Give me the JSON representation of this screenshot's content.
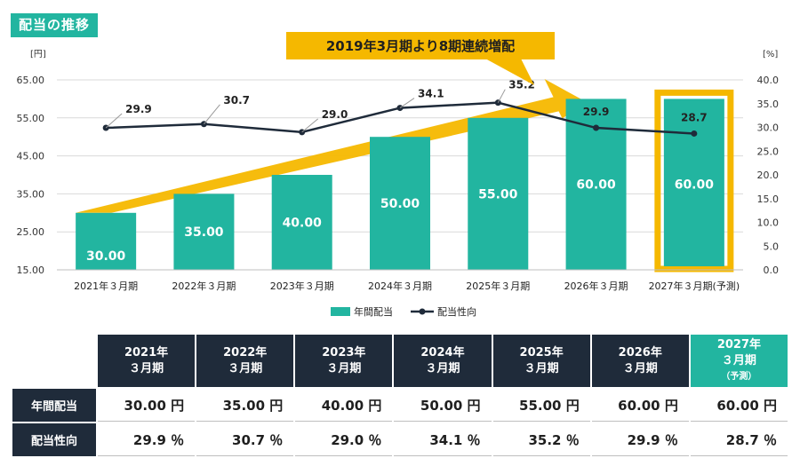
{
  "title": "配当の推移",
  "callout": "2019年3月期より8期連続増配",
  "legend": {
    "bars": "年間配当",
    "line": "配当性向"
  },
  "colors": {
    "bar": "#22b5a0",
    "line": "#1f2b3a",
    "arrow": "#f5b800",
    "title_bg": "#22b5a0",
    "header_bg": "#1f2b3a"
  },
  "chart_data": {
    "type": "bar",
    "categories": [
      "2021年３月期",
      "2022年３月期",
      "2023年３月期",
      "2024年３月期",
      "2025年３月期",
      "2026年３月期",
      "2027年３月期(予測)"
    ],
    "series": [
      {
        "name": "年間配当",
        "type": "bar",
        "axis": "left",
        "values": [
          30.0,
          35.0,
          40.0,
          50.0,
          55.0,
          60.0,
          60.0
        ],
        "labels": [
          "30.00",
          "35.00",
          "40.00",
          "50.00",
          "55.00",
          "60.00",
          "60.00"
        ]
      },
      {
        "name": "配当性向",
        "type": "line",
        "axis": "right",
        "values": [
          29.9,
          30.7,
          29.0,
          34.1,
          35.2,
          29.9,
          28.7
        ],
        "labels": [
          "29.9",
          "30.7",
          "29.0",
          "34.1",
          "35.2",
          "29.9",
          "28.7"
        ]
      }
    ],
    "y_left": {
      "unit": "[円]",
      "ylim": [
        15,
        65
      ],
      "ticks": [
        "15.00",
        "25.00",
        "35.00",
        "45.00",
        "55.00",
        "65.00"
      ]
    },
    "y_right": {
      "unit": "[%]",
      "ylim": [
        0,
        40
      ],
      "ticks": [
        "0.0",
        "5.0",
        "10.0",
        "15.0",
        "20.0",
        "25.0",
        "30.0",
        "35.0",
        "40.0"
      ]
    },
    "highlight_category": "2027年３月期(予測)",
    "legend_position": "bottom"
  },
  "table": {
    "headers": [
      {
        "line1": "2021年",
        "line2": "３月期",
        "note": ""
      },
      {
        "line1": "2022年",
        "line2": "３月期",
        "note": ""
      },
      {
        "line1": "2023年",
        "line2": "３月期",
        "note": ""
      },
      {
        "line1": "2024年",
        "line2": "３月期",
        "note": ""
      },
      {
        "line1": "2025年",
        "line2": "３月期",
        "note": ""
      },
      {
        "line1": "2026年",
        "line2": "３月期",
        "note": ""
      },
      {
        "line1": "2027年",
        "line2": "３月期",
        "note": "（予測）"
      }
    ],
    "rows": [
      {
        "label": "年間配当",
        "cells": [
          "30.00 円",
          "35.00 円",
          "40.00 円",
          "50.00 円",
          "55.00 円",
          "60.00 円",
          "60.00 円"
        ]
      },
      {
        "label": "配当性向",
        "cells": [
          "29.9 ％",
          "30.7 ％",
          "29.0 ％",
          "34.1 ％",
          "35.2 ％",
          "29.9 ％",
          "28.7 ％"
        ]
      }
    ]
  }
}
